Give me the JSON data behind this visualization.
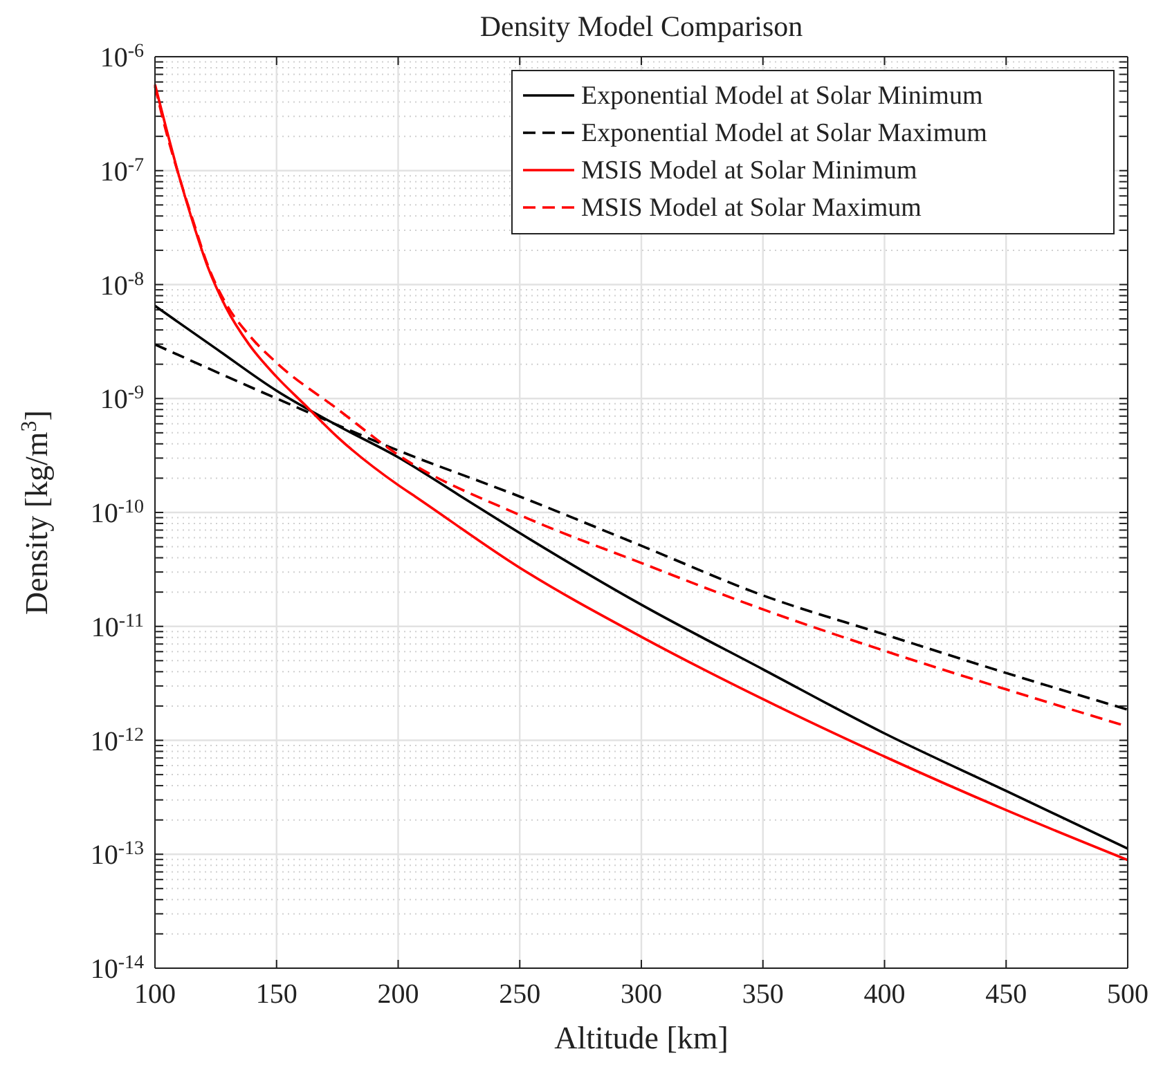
{
  "chart_data": {
    "type": "line",
    "title": "Density Model Comparison",
    "xlabel": "Altitude [km]",
    "ylabel": "Density [kg/m$^{3}$]",
    "log": "y",
    "grid": true,
    "legend": "top right",
    "xlim": [
      100,
      500
    ],
    "xticks": [
      100,
      150,
      200,
      250,
      300,
      350,
      400,
      450,
      500
    ],
    "ylim": [
      1e-14,
      1e-06
    ],
    "yticks": [
      {
        "value": 1e-14,
        "label": "10$^{-14}$"
      },
      {
        "value": 1e-13,
        "label": "10$^{-13}$"
      },
      {
        "value": 1e-12,
        "label": "10$^{-12}$"
      },
      {
        "value": 1e-11,
        "label": "10$^{-11}$"
      },
      {
        "value": 1e-10,
        "label": "10$^{-10}$"
      },
      {
        "value": 1e-09,
        "label": "10$^{-9}$"
      },
      {
        "value": 1e-08,
        "label": "10$^{-8}$"
      },
      {
        "value": 1e-07,
        "label": "10$^{-7}$"
      },
      {
        "value": 1e-06,
        "label": "10$^{-6}$"
      }
    ],
    "series": [
      {
        "name": "Exponential Model at Solar Minimum",
        "color": "#000000",
        "line_style": "solid",
        "x": [
          100,
          125,
          150,
          175,
          200,
          225,
          250,
          300,
          350,
          400,
          450,
          500
        ],
        "values": [
          6.5e-09,
          2.75e-09,
          1.17e-09,
          5.8e-10,
          3.05e-10,
          1.42e-10,
          6.6e-11,
          1.55e-11,
          4.2e-12,
          1.15e-12,
          3.6e-13,
          1.12e-13
        ]
      },
      {
        "name": "Exponential Model at Solar Maximum",
        "color": "#000000",
        "line_style": "dashed",
        "x": [
          100,
          150,
          200,
          250,
          300,
          350,
          400,
          450,
          500
        ],
        "values": [
          2.98e-09,
          1e-09,
          3.5e-10,
          1.38e-10,
          5.1e-11,
          1.87e-11,
          8.5e-12,
          3.9e-12,
          1.86e-12
        ]
      },
      {
        "name": "MSIS Model at Solar Minimum",
        "color": "#ff0000",
        "line_style": "solid",
        "x": [
          100,
          104.6,
          110.2,
          115.9,
          121.6,
          129.2,
          138.7,
          150,
          161.4,
          175,
          200,
          207,
          250,
          300,
          350,
          400,
          450,
          500
        ],
        "values": [
          5.7e-07,
          2.36e-07,
          8.5e-08,
          3.35e-08,
          1.45e-08,
          6.3e-09,
          2.98e-09,
          1.55e-09,
          8.9e-10,
          4.6e-10,
          1.74e-10,
          1.38e-10,
          3.27e-11,
          8.1e-12,
          2.3e-12,
          7.2e-13,
          2.44e-13,
          8.9e-14
        ]
      },
      {
        "name": "MSIS Model at Solar Maximum",
        "color": "#ff0000",
        "line_style": "dashed",
        "x": [
          100,
          104.6,
          110.2,
          115.9,
          121.6,
          129.2,
          138.7,
          150,
          175,
          200,
          250,
          300,
          350,
          400,
          450,
          500
        ],
        "values": [
          5.5e-07,
          2.2e-07,
          8.5e-08,
          3.5e-08,
          1.5e-08,
          6.8e-09,
          3.6e-09,
          2.06e-09,
          8.1e-10,
          3.2e-10,
          9.5e-11,
          3.6e-11,
          1.41e-11,
          6.1e-12,
          2.8e-12,
          1.32e-12
        ]
      }
    ]
  }
}
